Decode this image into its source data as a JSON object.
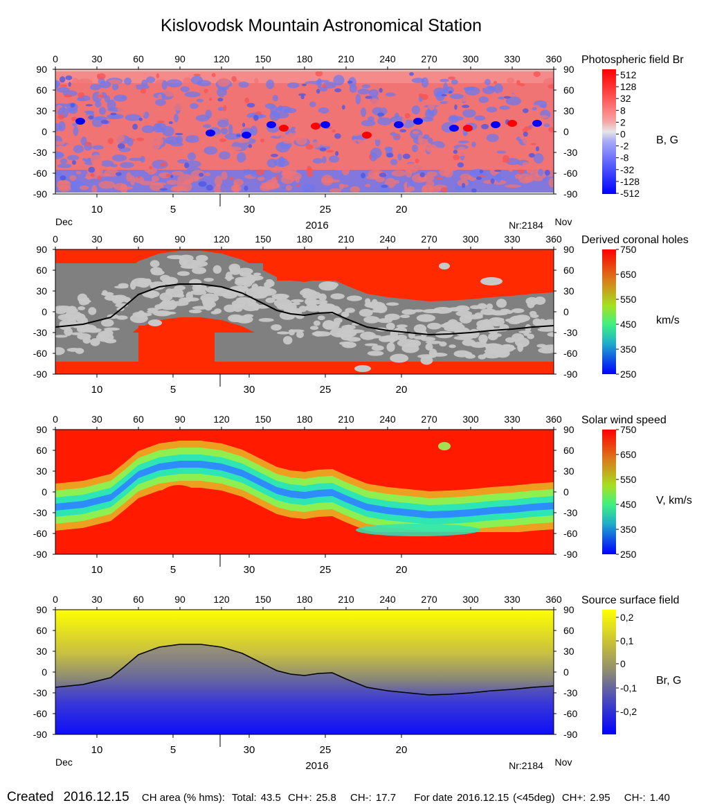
{
  "title": "Kislovodsk Mountain Astronomical Station",
  "axes": {
    "x_ticks": [
      "0",
      "30",
      "60",
      "90",
      "120",
      "150",
      "180",
      "210",
      "240",
      "270",
      "300",
      "330",
      "360"
    ],
    "y_ticks": [
      "90",
      "60",
      "30",
      "0",
      "-30",
      "-60",
      "-90"
    ],
    "date_ticks": [
      "10",
      "5",
      "30",
      "25",
      "20"
    ],
    "month_left": "Dec",
    "month_right": "Nov",
    "year": "2016",
    "rotation": "Nr:2184"
  },
  "colors": {
    "br_pos": "#f07474",
    "br_neg": "#6d78ee",
    "br_strong_pos": "#ff0000",
    "br_strong_neg": "#0000ff",
    "ch_open": "#ff2a00",
    "ch_dark": "#808080",
    "ch_light": "#c8c8c8",
    "sw_fast": "#ff1a00",
    "sw_slow": "#2f8cff",
    "sw_mid": "#2ee6b4",
    "ss_pos": "#ffff00",
    "ss_neg": "#0000ff",
    "ss_zero": "#8c8a74",
    "neutral_line": "#000000"
  },
  "chart_data": [
    {
      "type": "heatmap",
      "title": "Photospheric field Br",
      "unit_label": "B, G",
      "xlim": [
        0,
        360
      ],
      "ylim": [
        -90,
        90
      ],
      "colorbar_labels": [
        "512",
        "128",
        "32",
        "8",
        "2",
        "0",
        "-2",
        "-8",
        "-32",
        "-128",
        "-512"
      ],
      "dates_shown": true,
      "strong_spots": [
        {
          "lon": 18,
          "lat": 15,
          "sign": "neg"
        },
        {
          "lon": 112,
          "lat": -2,
          "sign": "neg"
        },
        {
          "lon": 138,
          "lat": -5,
          "sign": "neg"
        },
        {
          "lon": 156,
          "lat": 10,
          "sign": "neg"
        },
        {
          "lon": 165,
          "lat": 5,
          "sign": "pos"
        },
        {
          "lon": 188,
          "lat": 8,
          "sign": "pos"
        },
        {
          "lon": 195,
          "lat": 10,
          "sign": "neg"
        },
        {
          "lon": 225,
          "lat": -5,
          "sign": "pos"
        },
        {
          "lon": 248,
          "lat": 10,
          "sign": "neg"
        },
        {
          "lon": 262,
          "lat": 15,
          "sign": "neg"
        },
        {
          "lon": 288,
          "lat": 5,
          "sign": "neg"
        },
        {
          "lon": 298,
          "lat": 5,
          "sign": "pos"
        },
        {
          "lon": 318,
          "lat": 10,
          "sign": "neg"
        },
        {
          "lon": 330,
          "lat": 12,
          "sign": "pos"
        },
        {
          "lon": 348,
          "lat": 12,
          "sign": "neg"
        }
      ]
    },
    {
      "type": "heatmap",
      "title": "Derived coronal holes",
      "unit_label": "km/s",
      "xlim": [
        0,
        360
      ],
      "ylim": [
        -90,
        90
      ],
      "colorbar_labels": [
        "750",
        "650",
        "550",
        "450",
        "350",
        "250"
      ],
      "colorbar_range": [
        250,
        750
      ],
      "dates_shown": false,
      "neutral_line": true
    },
    {
      "type": "heatmap",
      "title": "Solar wind speed",
      "unit_label": "V, km/s",
      "xlim": [
        0,
        360
      ],
      "ylim": [
        -90,
        90
      ],
      "colorbar_labels": [
        "750",
        "650",
        "550",
        "450",
        "350",
        "250"
      ],
      "colorbar_range": [
        250,
        750
      ],
      "dates_shown": false
    },
    {
      "type": "heatmap",
      "title": "Source surface field",
      "unit_label": "Br, G",
      "xlim": [
        0,
        360
      ],
      "ylim": [
        -90,
        90
      ],
      "colorbar_labels": [
        "0,2",
        "0,1",
        "0",
        "-0,1",
        "-0,2"
      ],
      "colorbar_range": [
        -0.25,
        0.25
      ],
      "dates_shown": true,
      "neutral_line": true
    }
  ],
  "neutral_line": {
    "lon": [
      0,
      20,
      40,
      50,
      60,
      75,
      90,
      105,
      120,
      135,
      150,
      160,
      170,
      180,
      190,
      200,
      210,
      225,
      240,
      255,
      270,
      285,
      300,
      315,
      330,
      345,
      360
    ],
    "lat": [
      -22,
      -18,
      -8,
      8,
      25,
      36,
      40,
      40,
      36,
      27,
      12,
      2,
      -3,
      -5,
      -2,
      -1,
      -10,
      -22,
      -27,
      -30,
      -33,
      -32,
      -30,
      -27,
      -25,
      -22,
      -20
    ]
  },
  "footer": {
    "created_label": "Created",
    "created_date": "2016.12.15",
    "ch_area_label": "CH area (% hms):",
    "total_label": "Total:",
    "total_value": "43.5",
    "chp_label": "CH+:",
    "chp_value": "25.8",
    "chm_label": "CH-:",
    "chm_value": "17.7",
    "for_date_label": "For date",
    "for_date_value": "2016.12.15",
    "for_date_range": "(<45deg)",
    "fd_chp_label": "CH+:",
    "fd_chp_value": "2.95",
    "fd_chm_label": "CH-:",
    "fd_chm_value": "1.40"
  }
}
